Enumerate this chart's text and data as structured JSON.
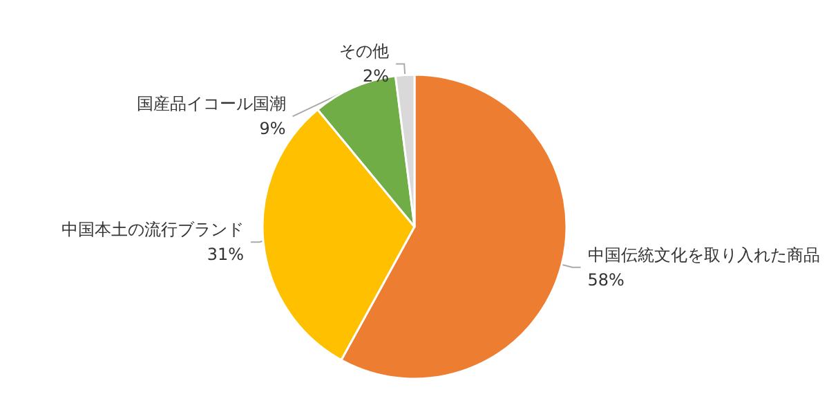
{
  "chart_data": {
    "type": "pie",
    "categories": [
      "中国伝統文化を取り入れた商品",
      "中国本土の流行ブランド",
      "国産品イコール国潮",
      "その他"
    ],
    "values": [
      58,
      31,
      9,
      2
    ],
    "value_labels": [
      "58%",
      "31%",
      "9%",
      "2%"
    ],
    "colors": [
      "#ed7d31",
      "#ffc000",
      "#70ad47",
      "#d9d9d9"
    ],
    "legend": false
  }
}
